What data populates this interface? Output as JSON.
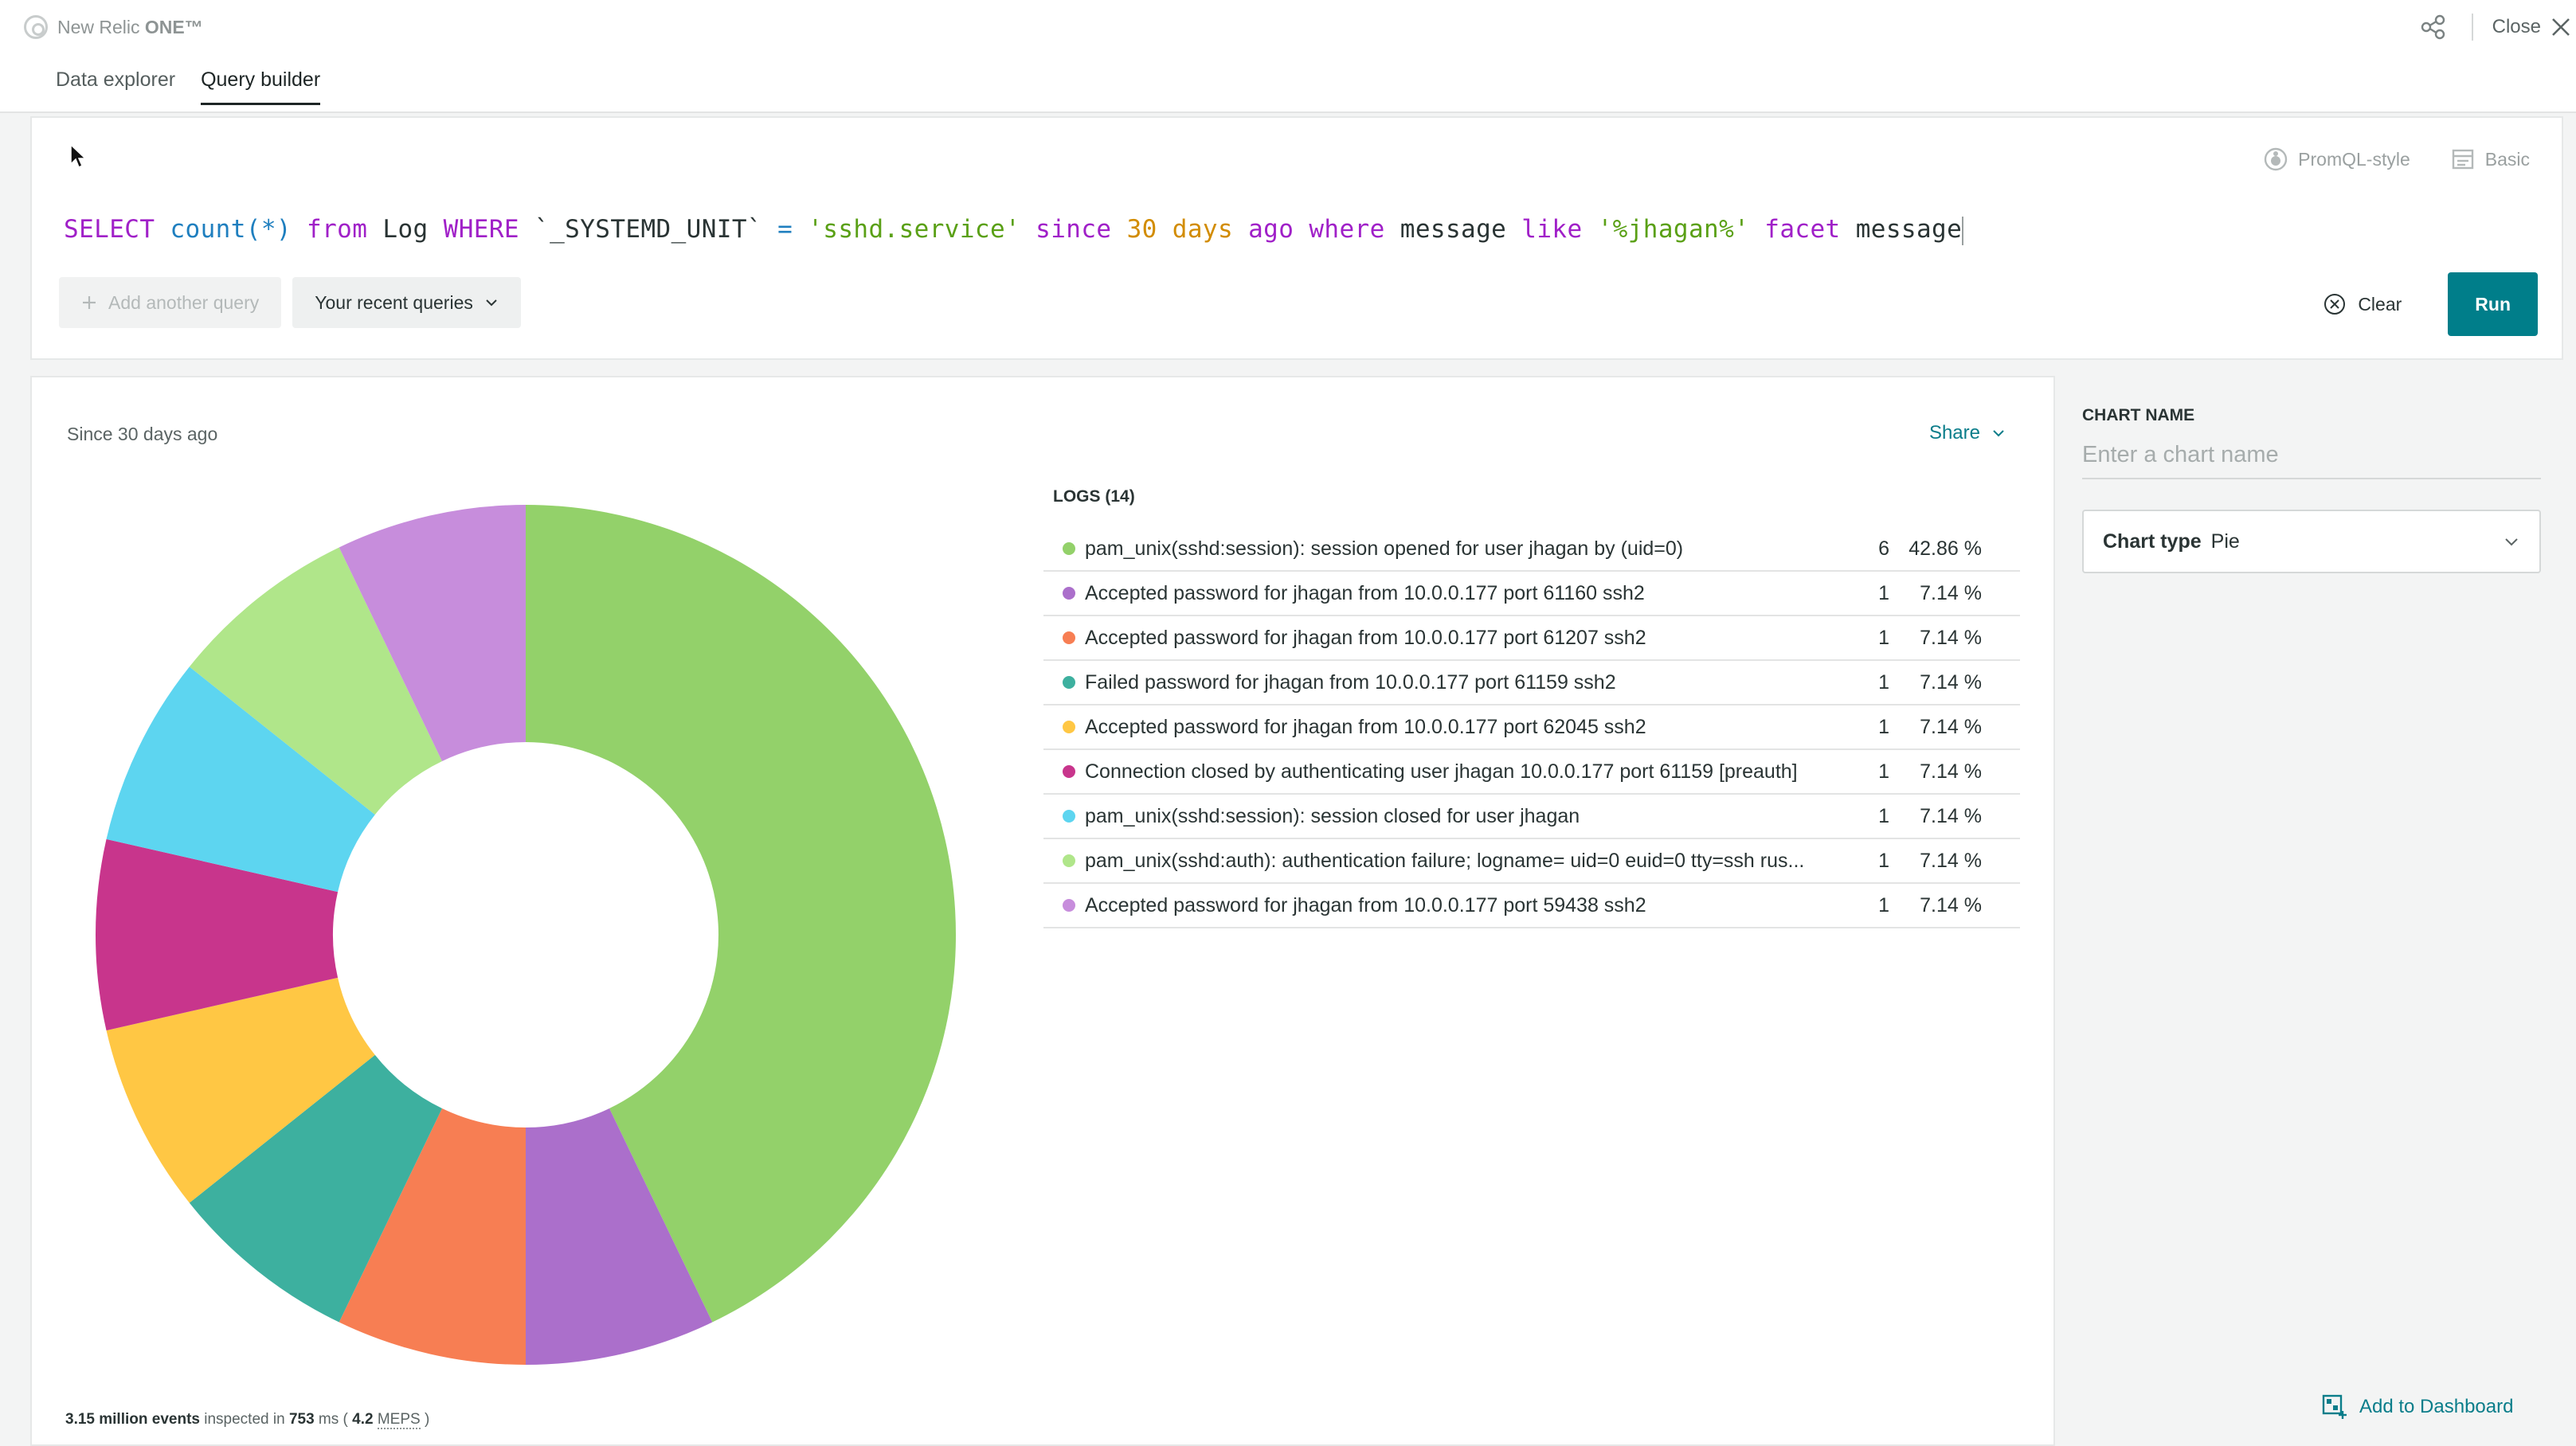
{
  "app": {
    "brand_prefix": "New Relic ",
    "brand_strong": "ONE™",
    "close_label": "Close"
  },
  "tabs": [
    {
      "label": "Data explorer",
      "active": false
    },
    {
      "label": "Query builder",
      "active": true
    }
  ],
  "query": {
    "modes": [
      "PromQL-style",
      "Basic"
    ],
    "tokens": {
      "t1": "SELECT",
      "t2": " count",
      "t3": "(*)",
      "t4": " from",
      "t5": " Log",
      "t6": " WHERE",
      "t7": " `_SYSTEMD_UNIT`",
      "t8": " =",
      "t9": " 'sshd.service'",
      "t10": " since",
      "t11": " 30",
      "t12": " days",
      "t13": " ago",
      "t14": " where",
      "t15": " message",
      "t16": " like",
      "t17": " '%jhagan%'",
      "t18": " facet",
      "t19": " message"
    },
    "add_query_label": "Add another query",
    "recent_queries_label": "Your recent queries",
    "clear_label": "Clear",
    "run_label": "Run"
  },
  "results": {
    "since_label": "Since 30 days ago",
    "share_label": "Share",
    "legend_title": "LOGS (14)",
    "footer": {
      "events": "3.15 million events",
      "inspected": " inspected in ",
      "ms": "753",
      "ms_unit": " ms ( ",
      "meps": "4.2",
      "meps_label": "MEPS",
      "close": " )"
    }
  },
  "chart_data": {
    "type": "pie",
    "donut": true,
    "total": 14,
    "series": [
      {
        "label": "pam_unix(sshd:session): session opened for user jhagan by (uid=0)",
        "count": 6,
        "percent": "42.86 %",
        "color": "#93d16a"
      },
      {
        "label": "Accepted password for jhagan from 10.0.0.177 port 61160 ssh2",
        "count": 1,
        "percent": "7.14 %",
        "color": "#ab6fcb"
      },
      {
        "label": "Accepted password for jhagan from 10.0.0.177 port 61207 ssh2",
        "count": 1,
        "percent": "7.14 %",
        "color": "#f77e53"
      },
      {
        "label": "Failed password for jhagan from 10.0.0.177 port 61159 ssh2",
        "count": 1,
        "percent": "7.14 %",
        "color": "#3db09f"
      },
      {
        "label": "Accepted password for jhagan from 10.0.0.177 port 62045 ssh2",
        "count": 1,
        "percent": "7.14 %",
        "color": "#ffc744"
      },
      {
        "label": "Connection closed by authenticating user jhagan 10.0.0.177 port 61159 [preauth]",
        "count": 1,
        "percent": "7.14 %",
        "color": "#c8358c"
      },
      {
        "label": "pam_unix(sshd:session): session closed for user jhagan",
        "count": 1,
        "percent": "7.14 %",
        "color": "#5dd5f0"
      },
      {
        "label": "pam_unix(sshd:auth): authentication failure; logname= uid=0 euid=0 tty=ssh rus...",
        "count": 1,
        "percent": "7.14 %",
        "color": "#b0e68a"
      },
      {
        "label": "Accepted password for jhagan from 10.0.0.177 port 59438 ssh2",
        "count": 1,
        "percent": "7.14 %",
        "color": "#c78ddc"
      }
    ]
  },
  "config": {
    "chart_name_label": "CHART NAME",
    "chart_name_placeholder": "Enter a chart name",
    "chart_type_label": "Chart type",
    "chart_type_value": "Pie",
    "add_to_dashboard_label": "Add to Dashboard"
  }
}
